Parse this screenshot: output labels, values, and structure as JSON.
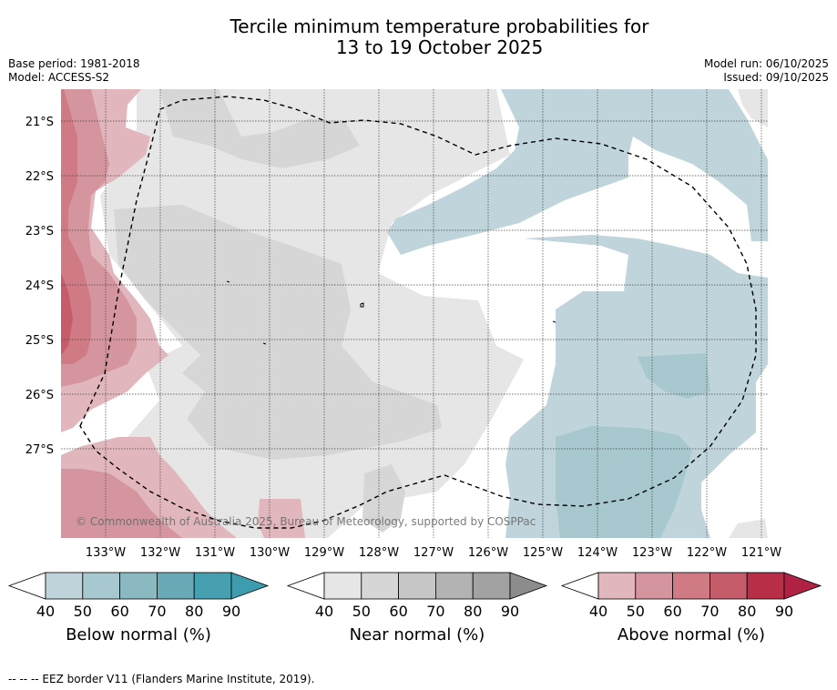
{
  "title": {
    "line1": "Tercile minimum temperature probabilities for",
    "line2": "13 to 19 October 2025"
  },
  "meta": {
    "base_period": "Base period: 1981-2018",
    "model": "Model: ACCESS-S2",
    "model_run": "Model run: 06/10/2025",
    "issued": "Issued: 09/10/2025"
  },
  "map": {
    "watermark": "© Commonwealth of Australia 2025, Bureau of Meteorology, supported by COSPPac",
    "lat_labels": [
      "21°S",
      "22°S",
      "23°S",
      "24°S",
      "25°S",
      "26°S",
      "27°S"
    ],
    "lon_labels": [
      "133°W",
      "132°W",
      "131°W",
      "130°W",
      "129°W",
      "128°W",
      "127°W",
      "126°W",
      "125°W",
      "124°W",
      "123°W",
      "122°W",
      "121°W"
    ]
  },
  "legends": [
    {
      "name": "below",
      "label": "Below normal (%)",
      "ticks": [
        "40",
        "50",
        "60",
        "70",
        "80",
        "90"
      ],
      "colors": [
        "#bfd4db",
        "#a6c8ce",
        "#8bb9c2",
        "#6aaab6",
        "#47a0b0"
      ],
      "arrow_color": "#3d9cad"
    },
    {
      "name": "near",
      "label": "Near normal (%)",
      "ticks": [
        "40",
        "50",
        "60",
        "70",
        "80",
        "90"
      ],
      "colors": [
        "#e6e6e6",
        "#d6d6d6",
        "#c6c6c6",
        "#b3b3b3",
        "#a2a2a2"
      ],
      "arrow_color": "#8c8c8c"
    },
    {
      "name": "above",
      "label": "Above normal (%)",
      "ticks": [
        "40",
        "50",
        "60",
        "70",
        "80",
        "90"
      ],
      "colors": [
        "#e2b6bd",
        "#d5959e",
        "#cf7a84",
        "#c55c6a",
        "#b92e47"
      ],
      "arrow_color": "#b02244"
    }
  ],
  "footnote": "--  --  -- EEZ border V11 (Flanders Marine Institute, 2019).",
  "colors": {
    "below_light": "#bfd4db",
    "below_mid": "#a6c8ce",
    "near_light": "#e6e6e6",
    "near_mid": "#d6d6d6",
    "above_light": "#e2b6bd",
    "above_mid": "#d5959e",
    "above_dark": "#cf7a84",
    "above_darker": "#c55c6a"
  }
}
